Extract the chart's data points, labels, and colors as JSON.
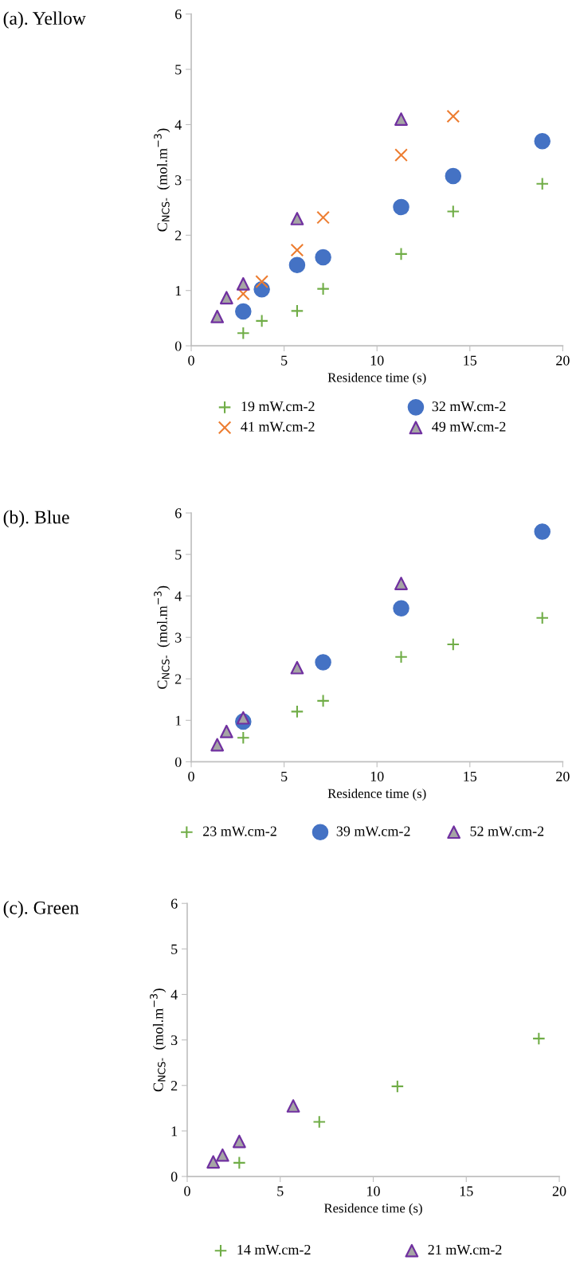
{
  "chart_data": [
    {
      "type": "scatter",
      "title": "(a). Yellow",
      "xlabel": "Residence time (s)",
      "ylabel": "C$_{NCS-}$  (mol.m$^{−3}$)",
      "xlim": [
        0,
        20
      ],
      "xticks": [
        0,
        5,
        10,
        15,
        20
      ],
      "ylim": [
        0,
        6
      ],
      "yticks": [
        0,
        1,
        2,
        3,
        4,
        5,
        6
      ],
      "grid": false,
      "legend": "bottom",
      "series": [
        {
          "name": "19 mW.cm-2",
          "color": "#70ad47",
          "marker": "plus",
          "x": [
            2.8,
            3.8,
            5.7,
            7.1,
            11.3,
            14.1,
            18.9
          ],
          "values": [
            0.23,
            0.45,
            0.63,
            1.03,
            1.66,
            2.43,
            2.93
          ]
        },
        {
          "name": "32 mW.cm-2",
          "color": "#4472c4",
          "marker": "circle",
          "x": [
            2.8,
            3.8,
            5.7,
            7.1,
            11.3,
            14.1,
            18.9
          ],
          "values": [
            0.62,
            1.02,
            1.46,
            1.6,
            2.51,
            3.07,
            3.7
          ]
        },
        {
          "name": "41 mW.cm-2",
          "color": "#ed7d31",
          "marker": "cross",
          "x": [
            2.8,
            3.8,
            5.7,
            7.1,
            11.3,
            14.1
          ],
          "values": [
            0.94,
            1.16,
            1.73,
            2.32,
            3.45,
            4.15
          ]
        },
        {
          "name": "49 mW.cm-2",
          "color": "#7030a0",
          "marker": "triangle",
          "x": [
            1.4,
            1.9,
            2.8,
            5.7,
            11.3
          ],
          "values": [
            0.53,
            0.87,
            1.12,
            2.3,
            4.1
          ]
        }
      ]
    },
    {
      "type": "scatter",
      "title": "(b). Blue",
      "xlabel": "Residence time (s)",
      "ylabel": "C$_{NCS-}$  (mol.m$^{−3}$)",
      "xlim": [
        0,
        20
      ],
      "xticks": [
        0,
        5,
        10,
        15,
        20
      ],
      "ylim": [
        0,
        6
      ],
      "yticks": [
        0,
        1,
        2,
        3,
        4,
        5,
        6
      ],
      "grid": false,
      "legend": "bottom",
      "series": [
        {
          "name": "23 mW.cm-2",
          "color": "#70ad47",
          "marker": "plus",
          "x": [
            2.8,
            5.7,
            7.1,
            11.3,
            14.1,
            18.9
          ],
          "values": [
            0.58,
            1.21,
            1.47,
            2.53,
            2.83,
            3.47
          ]
        },
        {
          "name": "39 mW.cm-2",
          "color": "#4472c4",
          "marker": "circle",
          "x": [
            2.8,
            7.1,
            11.3,
            18.9
          ],
          "values": [
            0.97,
            2.4,
            3.7,
            5.55
          ]
        },
        {
          "name": "52 mW.cm-2",
          "color": "#7030a0",
          "marker": "triangle",
          "x": [
            1.4,
            1.9,
            2.8,
            5.7,
            11.3
          ],
          "values": [
            0.41,
            0.73,
            1.06,
            2.27,
            4.3
          ]
        }
      ]
    },
    {
      "type": "scatter",
      "title": "(c). Green",
      "xlabel": "Residence time (s)",
      "ylabel": "C$_{NCS-}$  (mol.m$^{−3}$)",
      "xlim": [
        0,
        20
      ],
      "xticks": [
        0,
        5,
        10,
        15,
        20
      ],
      "ylim": [
        0,
        6
      ],
      "yticks": [
        0,
        1,
        2,
        3,
        4,
        5,
        6
      ],
      "grid": false,
      "legend": "bottom",
      "series": [
        {
          "name": "14 mW.cm-2",
          "color": "#70ad47",
          "marker": "plus",
          "x": [
            2.8,
            7.1,
            11.3,
            18.9
          ],
          "values": [
            0.3,
            1.2,
            1.98,
            3.03
          ]
        },
        {
          "name": "21 mW.cm-2",
          "color": "#7030a0",
          "marker": "triangle",
          "x": [
            1.4,
            1.9,
            2.8,
            5.7
          ],
          "values": [
            0.32,
            0.47,
            0.77,
            1.55
          ]
        }
      ]
    }
  ]
}
